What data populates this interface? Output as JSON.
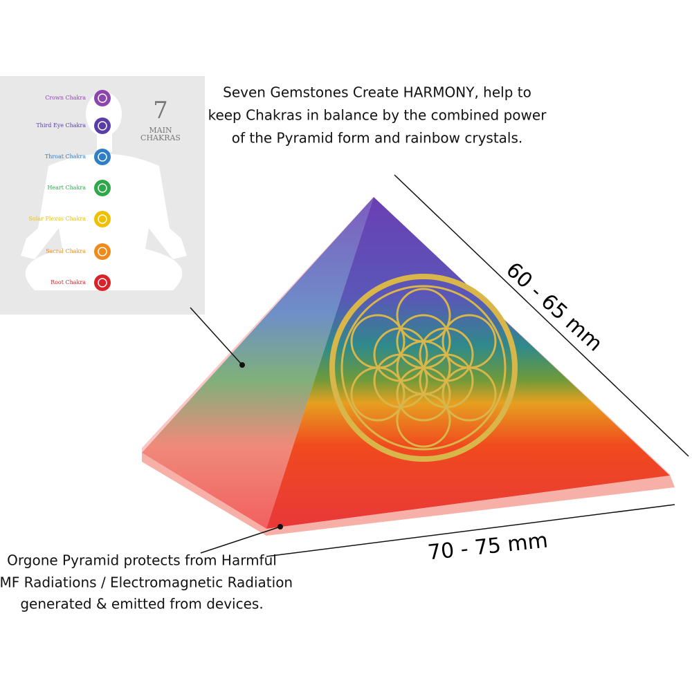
{
  "header": {
    "lines": [
      "Seven Gemstones Create HARMONY, help to",
      "keep Chakras in balance by the combined power",
      "of the Pyramid form and rainbow crystals."
    ]
  },
  "chakra_panel": {
    "number": "7",
    "title_lines": [
      "MAIN",
      "CHAKRAS"
    ],
    "chakras": [
      {
        "name": "Crown Chakra",
        "color": "#8e44ad"
      },
      {
        "name": "Third Eye Chakra",
        "color": "#5a3ea6"
      },
      {
        "name": "Throat Chakra",
        "color": "#2f7ec7"
      },
      {
        "name": "Heart Chakra",
        "color": "#2ea84a"
      },
      {
        "name": "Solar Plexus Chakra",
        "color": "#f0c000"
      },
      {
        "name": "Sacral Chakra",
        "color": "#ef8a1c"
      },
      {
        "name": "Root Chakra",
        "color": "#d8232a"
      }
    ]
  },
  "dimensions": {
    "height": "60 - 65 mm",
    "base": "70 - 75 mm"
  },
  "footer": {
    "lines": [
      "Orgone Pyramid protects from Harmful",
      "EMF Radiations / Electromagnetic Radiation",
      "generated & emitted from devices."
    ]
  }
}
